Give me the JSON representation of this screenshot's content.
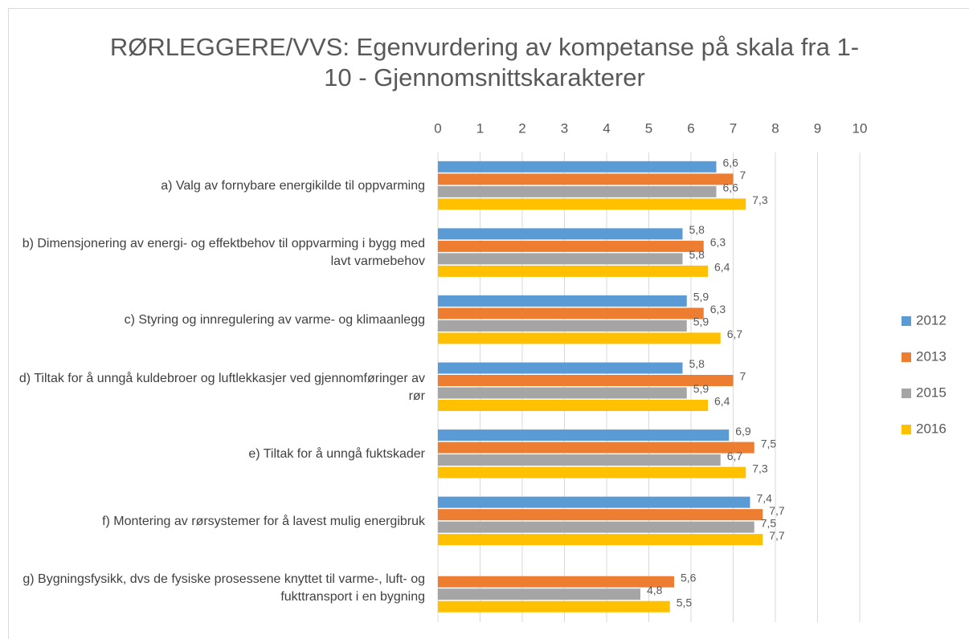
{
  "chart_data": {
    "type": "bar",
    "orientation": "horizontal",
    "title": "RØRLEGGERE/VVS: Egenvurdering av kompetanse på skala fra 1-10 - Gjennomsnittskarakterer",
    "categories": [
      "a) Valg av fornybare energikilde til oppvarming",
      "b) Dimensjonering av energi- og effektbehov til oppvarming i bygg med lavt varmebehov",
      "c) Styring og innregulering av varme- og klimaanlegg",
      "d) Tiltak for å unngå kuldebroer og luftlekkasjer ved gjennomføringer av rør",
      "e) Tiltak for å unngå fuktskader",
      "f) Montering av rørsystemer for å lavest mulig energibruk",
      "g) Bygningsfysikk, dvs de fysiske prosessene knyttet til varme-, luft- og fukttransport i en bygning"
    ],
    "series": [
      {
        "name": "2012",
        "color": "#5B9BD5",
        "values": [
          6.6,
          5.8,
          5.9,
          5.8,
          6.9,
          7.4,
          null
        ],
        "value_labels": [
          "6,6",
          "5,8",
          "5,9",
          "5,8",
          "6,9",
          "7,4",
          null
        ]
      },
      {
        "name": "2013",
        "color": "#ED7D31",
        "values": [
          7,
          6.3,
          6.3,
          7,
          7.5,
          7.7,
          5.6
        ],
        "value_labels": [
          "7",
          "6,3",
          "6,3",
          "7",
          "7,5",
          "7,7",
          "5,6"
        ]
      },
      {
        "name": "2015",
        "color": "#A5A5A5",
        "values": [
          6.6,
          5.8,
          5.9,
          5.9,
          6.7,
          7.5,
          4.8
        ],
        "value_labels": [
          "6,6",
          "5,8",
          "5,9",
          "5,9",
          "6,7",
          "7,5",
          "4,8"
        ]
      },
      {
        "name": "2016",
        "color": "#FFC000",
        "values": [
          7.3,
          6.4,
          6.7,
          6.4,
          7.3,
          7.7,
          5.5
        ],
        "value_labels": [
          "7,3",
          "6,4",
          "6,7",
          "6,4",
          "7,3",
          "7,7",
          "5,5"
        ]
      }
    ],
    "xlim": [
      0,
      10
    ],
    "xticks": [
      0,
      1,
      2,
      3,
      4,
      5,
      6,
      7,
      8,
      9,
      10
    ],
    "grid": true,
    "legend": "right"
  }
}
